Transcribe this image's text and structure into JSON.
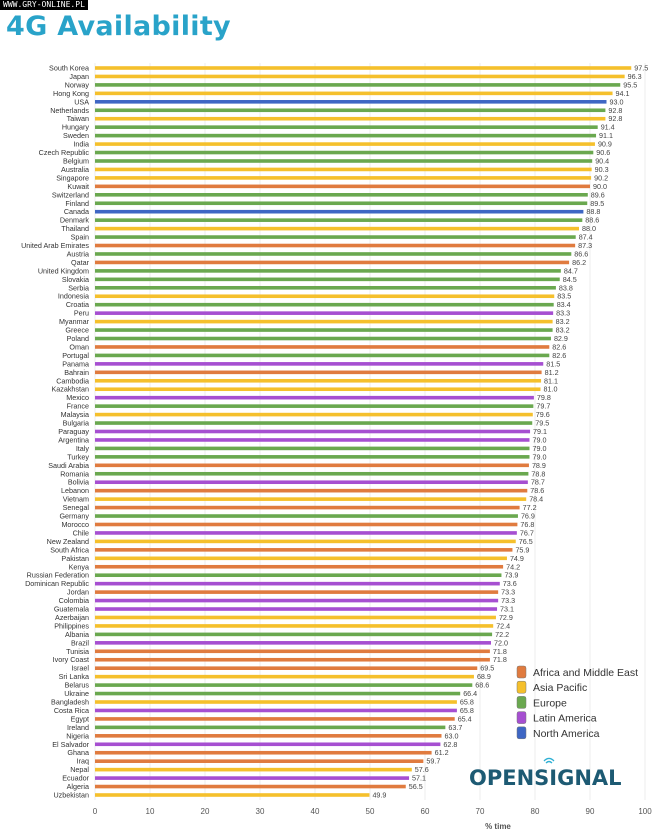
{
  "watermark": "WWW.GRY-ONLINE.PL",
  "logo": "OPENSIGNAL",
  "chart_data": {
    "type": "bar",
    "orientation": "horizontal",
    "title": "4G Availability",
    "xlabel": "% time",
    "ylabel": "",
    "xlim": [
      0,
      100
    ],
    "xticks": [
      0,
      10,
      20,
      30,
      40,
      50,
      60,
      70,
      80,
      90,
      100
    ],
    "grid": true,
    "legend_placement": "bottom-right",
    "legend": [
      {
        "name": "Africa and Middle East",
        "color": "#e07b3f"
      },
      {
        "name": "Asia Pacific",
        "color": "#f5c02c"
      },
      {
        "name": "Europe",
        "color": "#6aa84f"
      },
      {
        "name": "Latin America",
        "color": "#a64fd1"
      },
      {
        "name": "North America",
        "color": "#3e66c4"
      }
    ],
    "bars": [
      [
        "South Korea",
        97.5,
        "Asia Pacific"
      ],
      [
        "Japan",
        96.3,
        "Asia Pacific"
      ],
      [
        "Norway",
        95.5,
        "Europe"
      ],
      [
        "Hong Kong",
        94.1,
        "Asia Pacific"
      ],
      [
        "USA",
        93.0,
        "North America"
      ],
      [
        "Netherlands",
        92.8,
        "Europe"
      ],
      [
        "Taiwan",
        92.8,
        "Asia Pacific"
      ],
      [
        "Hungary",
        91.4,
        "Europe"
      ],
      [
        "Sweden",
        91.1,
        "Europe"
      ],
      [
        "India",
        90.9,
        "Asia Pacific"
      ],
      [
        "Czech Republic",
        90.6,
        "Europe"
      ],
      [
        "Belgium",
        90.4,
        "Europe"
      ],
      [
        "Australia",
        90.3,
        "Asia Pacific"
      ],
      [
        "Singapore",
        90.2,
        "Asia Pacific"
      ],
      [
        "Kuwait",
        90.0,
        "Africa and Middle East"
      ],
      [
        "Switzerland",
        89.6,
        "Europe"
      ],
      [
        "Finland",
        89.5,
        "Europe"
      ],
      [
        "Canada",
        88.8,
        "North America"
      ],
      [
        "Denmark",
        88.6,
        "Europe"
      ],
      [
        "Thailand",
        88.0,
        "Asia Pacific"
      ],
      [
        "Spain",
        87.4,
        "Europe"
      ],
      [
        "United Arab Emirates",
        87.3,
        "Africa and Middle East"
      ],
      [
        "Austria",
        86.6,
        "Europe"
      ],
      [
        "Qatar",
        86.2,
        "Africa and Middle East"
      ],
      [
        "United Kingdom",
        84.7,
        "Europe"
      ],
      [
        "Slovakia",
        84.5,
        "Europe"
      ],
      [
        "Serbia",
        83.8,
        "Europe"
      ],
      [
        "Indonesia",
        83.5,
        "Asia Pacific"
      ],
      [
        "Croatia",
        83.4,
        "Europe"
      ],
      [
        "Peru",
        83.3,
        "Latin America"
      ],
      [
        "Myanmar",
        83.2,
        "Asia Pacific"
      ],
      [
        "Greece",
        83.2,
        "Europe"
      ],
      [
        "Poland",
        82.9,
        "Europe"
      ],
      [
        "Oman",
        82.6,
        "Africa and Middle East"
      ],
      [
        "Portugal",
        82.6,
        "Europe"
      ],
      [
        "Panama",
        81.5,
        "Latin America"
      ],
      [
        "Bahrain",
        81.2,
        "Africa and Middle East"
      ],
      [
        "Cambodia",
        81.1,
        "Asia Pacific"
      ],
      [
        "Kazakhstan",
        81.0,
        "Asia Pacific"
      ],
      [
        "Mexico",
        79.8,
        "Latin America"
      ],
      [
        "France",
        79.7,
        "Europe"
      ],
      [
        "Malaysia",
        79.6,
        "Asia Pacific"
      ],
      [
        "Bulgaria",
        79.5,
        "Europe"
      ],
      [
        "Paraguay",
        79.1,
        "Latin America"
      ],
      [
        "Argentina",
        79.0,
        "Latin America"
      ],
      [
        "Italy",
        79.0,
        "Europe"
      ],
      [
        "Turkey",
        79.0,
        "Europe"
      ],
      [
        "Saudi Arabia",
        78.9,
        "Africa and Middle East"
      ],
      [
        "Romania",
        78.8,
        "Europe"
      ],
      [
        "Bolivia",
        78.7,
        "Latin America"
      ],
      [
        "Lebanon",
        78.6,
        "Africa and Middle East"
      ],
      [
        "Vietnam",
        78.4,
        "Asia Pacific"
      ],
      [
        "Senegal",
        77.2,
        "Africa and Middle East"
      ],
      [
        "Germany",
        76.9,
        "Europe"
      ],
      [
        "Morocco",
        76.8,
        "Africa and Middle East"
      ],
      [
        "Chile",
        76.7,
        "Latin America"
      ],
      [
        "New Zealand",
        76.5,
        "Asia Pacific"
      ],
      [
        "South Africa",
        75.9,
        "Africa and Middle East"
      ],
      [
        "Pakistan",
        74.9,
        "Asia Pacific"
      ],
      [
        "Kenya",
        74.2,
        "Africa and Middle East"
      ],
      [
        "Russian Federation",
        73.9,
        "Europe"
      ],
      [
        "Dominican Republic",
        73.6,
        "Latin America"
      ],
      [
        "Jordan",
        73.3,
        "Africa and Middle East"
      ],
      [
        "Colombia",
        73.3,
        "Latin America"
      ],
      [
        "Guatemala",
        73.1,
        "Latin America"
      ],
      [
        "Azerbaijan",
        72.9,
        "Asia Pacific"
      ],
      [
        "Philippines",
        72.4,
        "Asia Pacific"
      ],
      [
        "Albania",
        72.2,
        "Europe"
      ],
      [
        "Brazil",
        72.0,
        "Latin America"
      ],
      [
        "Tunisia",
        71.8,
        "Africa and Middle East"
      ],
      [
        "Ivory Coast",
        71.8,
        "Africa and Middle East"
      ],
      [
        "Israel",
        69.5,
        "Africa and Middle East"
      ],
      [
        "Sri Lanka",
        68.9,
        "Asia Pacific"
      ],
      [
        "Belarus",
        68.6,
        "Europe"
      ],
      [
        "Ukraine",
        66.4,
        "Europe"
      ],
      [
        "Bangladesh",
        65.8,
        "Asia Pacific"
      ],
      [
        "Costa Rica",
        65.8,
        "Latin America"
      ],
      [
        "Egypt",
        65.4,
        "Africa and Middle East"
      ],
      [
        "Ireland",
        63.7,
        "Europe"
      ],
      [
        "Nigeria",
        63.0,
        "Africa and Middle East"
      ],
      [
        "El Salvador",
        62.8,
        "Latin America"
      ],
      [
        "Ghana",
        61.2,
        "Africa and Middle East"
      ],
      [
        "Iraq",
        59.7,
        "Africa and Middle East"
      ],
      [
        "Nepal",
        57.6,
        "Asia Pacific"
      ],
      [
        "Ecuador",
        57.1,
        "Latin America"
      ],
      [
        "Algeria",
        56.5,
        "Africa and Middle East"
      ],
      [
        "Uzbekistan",
        49.9,
        "Asia Pacific"
      ]
    ]
  }
}
